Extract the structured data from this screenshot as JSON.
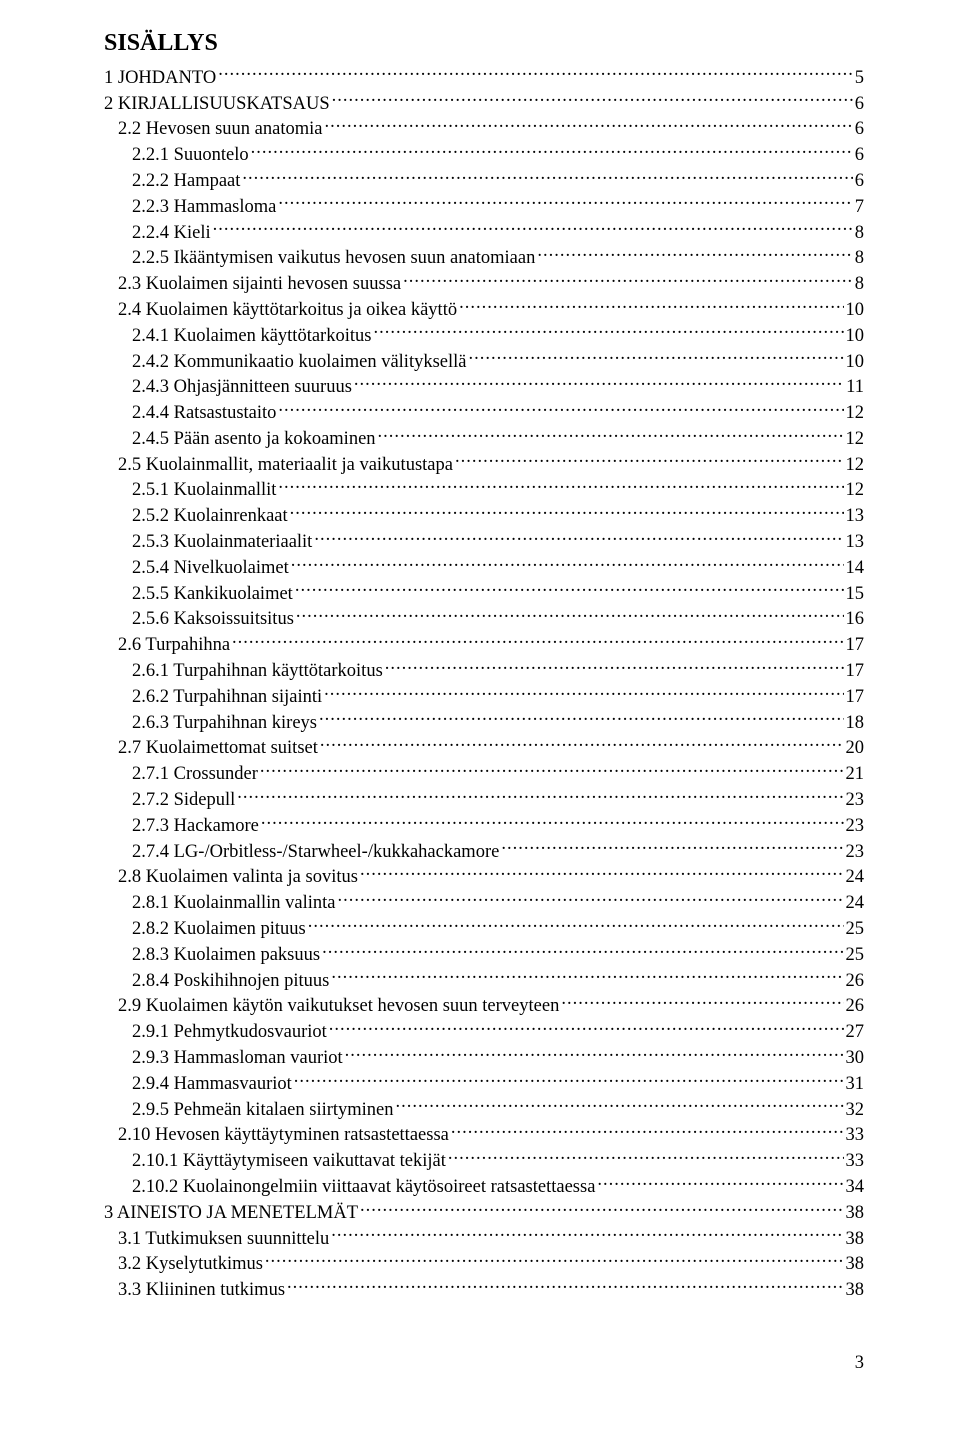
{
  "document": {
    "title": "SISÄLLYS",
    "page_number": "3",
    "text_color": "#000000",
    "background_color": "#ffffff",
    "font_family": "Times New Roman",
    "title_fontsize_pt": 18,
    "body_fontsize_pt": 14,
    "toc": [
      {
        "label": "1 JOHDANTO",
        "page": "5",
        "indent": 0
      },
      {
        "label": "2 KIRJALLISUUSKATSAUS",
        "page": "6",
        "indent": 0
      },
      {
        "label": "2.2 Hevosen suun anatomia",
        "page": "6",
        "indent": 1
      },
      {
        "label": "2.2.1 Suuontelo",
        "page": "6",
        "indent": 2
      },
      {
        "label": "2.2.2 Hampaat",
        "page": "6",
        "indent": 2
      },
      {
        "label": "2.2.3 Hammasloma",
        "page": "7",
        "indent": 2
      },
      {
        "label": "2.2.4 Kieli",
        "page": "8",
        "indent": 2
      },
      {
        "label": "2.2.5 Ikääntymisen vaikutus hevosen suun anatomiaan",
        "page": "8",
        "indent": 2
      },
      {
        "label": "2.3 Kuolaimen sijainti hevosen suussa",
        "page": "8",
        "indent": 1
      },
      {
        "label": "2.4 Kuolaimen käyttötarkoitus ja oikea käyttö",
        "page": "10",
        "indent": 1
      },
      {
        "label": "2.4.1 Kuolaimen käyttötarkoitus",
        "page": "10",
        "indent": 2
      },
      {
        "label": "2.4.2 Kommunikaatio kuolaimen välityksellä",
        "page": "10",
        "indent": 2
      },
      {
        "label": "2.4.3 Ohjasjännitteen suuruus",
        "page": "11",
        "indent": 2
      },
      {
        "label": "2.4.4 Ratsastustaito",
        "page": "12",
        "indent": 2
      },
      {
        "label": "2.4.5 Pään asento ja kokoaminen",
        "page": "12",
        "indent": 2
      },
      {
        "label": "2.5 Kuolainmallit, materiaalit ja vaikutustapa",
        "page": "12",
        "indent": 1
      },
      {
        "label": "2.5.1 Kuolainmallit",
        "page": "12",
        "indent": 2
      },
      {
        "label": "2.5.2 Kuolainrenkaat",
        "page": "13",
        "indent": 2
      },
      {
        "label": "2.5.3 Kuolainmateriaalit",
        "page": "13",
        "indent": 2
      },
      {
        "label": "2.5.4 Nivelkuolaimet",
        "page": "14",
        "indent": 2
      },
      {
        "label": "2.5.5 Kankikuolaimet",
        "page": "15",
        "indent": 2
      },
      {
        "label": "2.5.6 Kaksoissuitsitus",
        "page": "16",
        "indent": 2
      },
      {
        "label": "2.6 Turpahihna",
        "page": "17",
        "indent": 1
      },
      {
        "label": "2.6.1 Turpahihnan käyttötarkoitus",
        "page": "17",
        "indent": 2
      },
      {
        "label": "2.6.2 Turpahihnan sijainti",
        "page": "17",
        "indent": 2
      },
      {
        "label": "2.6.3 Turpahihnan kireys",
        "page": "18",
        "indent": 2
      },
      {
        "label": "2.7 Kuolaimettomat suitset",
        "page": "20",
        "indent": 1
      },
      {
        "label": "2.7.1 Crossunder",
        "page": "21",
        "indent": 2
      },
      {
        "label": "2.7.2 Sidepull",
        "page": "23",
        "indent": 2
      },
      {
        "label": "2.7.3 Hackamore",
        "page": "23",
        "indent": 2
      },
      {
        "label": "2.7.4 LG-/Orbitless-/Starwheel-/kukkahackamore",
        "page": "23",
        "indent": 2
      },
      {
        "label": "2.8 Kuolaimen valinta ja sovitus",
        "page": "24",
        "indent": 1
      },
      {
        "label": "2.8.1 Kuolainmallin valinta",
        "page": "24",
        "indent": 2
      },
      {
        "label": "2.8.2 Kuolaimen pituus",
        "page": "25",
        "indent": 2
      },
      {
        "label": "2.8.3 Kuolaimen paksuus",
        "page": "25",
        "indent": 2
      },
      {
        "label": "2.8.4 Poskihihnojen pituus",
        "page": "26",
        "indent": 2
      },
      {
        "label": "2.9 Kuolaimen käytön vaikutukset hevosen suun terveyteen",
        "page": "26",
        "indent": 1
      },
      {
        "label": "2.9.1 Pehmytkudosvauriot",
        "page": "27",
        "indent": 2
      },
      {
        "label": "2.9.3 Hammasloman vauriot",
        "page": "30",
        "indent": 2
      },
      {
        "label": "2.9.4 Hammasvauriot",
        "page": "31",
        "indent": 2
      },
      {
        "label": "2.9.5 Pehmeän kitalaen siirtyminen",
        "page": "32",
        "indent": 2
      },
      {
        "label": "2.10 Hevosen käyttäytyminen ratsastettaessa",
        "page": "33",
        "indent": 1
      },
      {
        "label": "2.10.1 Käyttäytymiseen vaikuttavat tekijät",
        "page": "33",
        "indent": 2
      },
      {
        "label": "2.10.2 Kuolainongelmiin viittaavat käytösoireet ratsastettaessa",
        "page": "34",
        "indent": 2
      },
      {
        "label": "3 AINEISTO JA MENETELMÄT",
        "page": "38",
        "indent": 0
      },
      {
        "label": "3.1 Tutkimuksen suunnittelu",
        "page": "38",
        "indent": 1
      },
      {
        "label": "3.2 Kyselytutkimus",
        "page": "38",
        "indent": 1
      },
      {
        "label": "3.3 Kliininen tutkimus",
        "page": "38",
        "indent": 1
      }
    ]
  }
}
